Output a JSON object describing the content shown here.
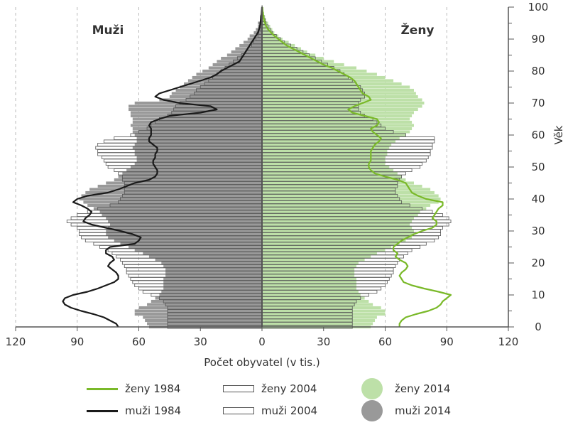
{
  "chart_data": {
    "type": "population-pyramid",
    "left_title": "Muži",
    "right_title": "Ženy",
    "xlabel": "Počet obyvatel (v tis.)",
    "ylabel": "Věk",
    "x_ticks_left": [
      "120",
      "90",
      "60",
      "30",
      "0"
    ],
    "x_ticks_right": [
      "30",
      "60",
      "90",
      "120"
    ],
    "y_ticks": [
      "0",
      "10",
      "20",
      "30",
      "40",
      "50",
      "60",
      "70",
      "80",
      "90",
      "100"
    ],
    "xlim": [
      0,
      120
    ],
    "ylim": [
      0,
      100
    ],
    "ages": [
      0,
      1,
      2,
      3,
      4,
      5,
      6,
      7,
      8,
      9,
      10,
      11,
      12,
      13,
      14,
      15,
      16,
      17,
      18,
      19,
      20,
      21,
      22,
      23,
      24,
      25,
      26,
      27,
      28,
      29,
      30,
      31,
      32,
      33,
      34,
      35,
      36,
      37,
      38,
      39,
      40,
      41,
      42,
      43,
      44,
      45,
      46,
      47,
      48,
      49,
      50,
      51,
      52,
      53,
      54,
      55,
      56,
      57,
      58,
      59,
      60,
      61,
      62,
      63,
      64,
      65,
      66,
      67,
      68,
      69,
      70,
      71,
      72,
      73,
      74,
      75,
      76,
      77,
      78,
      79,
      80,
      81,
      82,
      83,
      84,
      85,
      86,
      87,
      88,
      89,
      90,
      91,
      92,
      93,
      94,
      95,
      96,
      97,
      98,
      99,
      100
    ],
    "series": [
      {
        "name": "muži 2014",
        "side": "left",
        "style": "area",
        "color": "#999999",
        "values": [
          55,
          56,
          57,
          58,
          62,
          62,
          60,
          56,
          54,
          52,
          50,
          49,
          48,
          48,
          48,
          48,
          47,
          47,
          47,
          48,
          49,
          52,
          55,
          58,
          62,
          65,
          69,
          72,
          75,
          76,
          76,
          75,
          74,
          75,
          76,
          78,
          79,
          82,
          85,
          87,
          89,
          88,
          86,
          84,
          80,
          76,
          72,
          70,
          68,
          66,
          64,
          62,
          61,
          61,
          62,
          62,
          63,
          62,
          61,
          61,
          62,
          63,
          63,
          64,
          63,
          63,
          64,
          64,
          65,
          65,
          62,
          50,
          45,
          44,
          42,
          40,
          38,
          36,
          34,
          32,
          29,
          26,
          24,
          22,
          20,
          17,
          15,
          13,
          11,
          9,
          7,
          6,
          4,
          3,
          2,
          2,
          1,
          1,
          0.5,
          0.3,
          0.2
        ]
      },
      {
        "name": "muži 2004",
        "side": "left",
        "style": "outline",
        "color": "#555555",
        "values": [
          46,
          46,
          46,
          46,
          46,
          46,
          46,
          47,
          48,
          50,
          54,
          58,
          60,
          62,
          63,
          64,
          65,
          66,
          66,
          67,
          68,
          69,
          71,
          73,
          75,
          79,
          82,
          86,
          88,
          89,
          89,
          90,
          93,
          95,
          93,
          90,
          85,
          80,
          74,
          70,
          69,
          68,
          67,
          67,
          67,
          67,
          68,
          68,
          70,
          72,
          75,
          76,
          77,
          78,
          80,
          80,
          81,
          80,
          77,
          72,
          64,
          60,
          56,
          54,
          52,
          50,
          46,
          44,
          43,
          42,
          40,
          37,
          35,
          33,
          32,
          30,
          28,
          26,
          24,
          22,
          20,
          18,
          16,
          14,
          12,
          10,
          8,
          7,
          5,
          4,
          3,
          2,
          1.5,
          1,
          0.8,
          0.5,
          0.3,
          0.2,
          0.1,
          0.1,
          0
        ]
      },
      {
        "name": "muži 1984",
        "side": "left",
        "style": "line",
        "color": "#1a1a1a",
        "values": [
          70,
          71,
          74,
          77,
          82,
          88,
          93,
          96,
          97,
          96,
          92,
          85,
          80,
          76,
          72,
          70,
          70,
          71,
          73,
          75,
          74,
          72,
          73,
          76,
          76,
          74,
          62,
          60,
          59,
          63,
          69,
          76,
          83,
          87,
          86,
          84,
          83,
          85,
          88,
          92,
          90,
          85,
          75,
          70,
          66,
          62,
          55,
          52,
          51,
          51,
          52,
          53,
          53,
          52,
          52,
          51,
          51,
          53,
          55,
          55,
          54,
          54,
          54,
          55,
          54,
          50,
          45,
          30,
          22,
          25,
          40,
          48,
          52,
          50,
          45,
          40,
          35,
          30,
          25,
          22,
          20,
          17,
          14,
          11,
          10,
          9,
          8,
          7,
          6,
          5,
          4,
          3,
          2,
          1.5,
          1,
          0.8,
          0.6,
          0.4,
          0.2,
          0.1,
          0
        ]
      },
      {
        "name": "ženy 2014",
        "side": "right",
        "style": "area",
        "color": "#bde0a8",
        "values": [
          53,
          54,
          55,
          56,
          60,
          60,
          58,
          54,
          52,
          50,
          48,
          47,
          46,
          46,
          46,
          46,
          45,
          45,
          45,
          46,
          47,
          50,
          53,
          56,
          60,
          63,
          67,
          70,
          73,
          74,
          74,
          73,
          72,
          73,
          74,
          76,
          77,
          80,
          82,
          86,
          87,
          86,
          84,
          82,
          78,
          74,
          70,
          68,
          66,
          64,
          62,
          60,
          60,
          60,
          61,
          61,
          62,
          63,
          65,
          67,
          70,
          72,
          73,
          74,
          73,
          72,
          73,
          74,
          76,
          78,
          79,
          78,
          76,
          75,
          74,
          72,
          68,
          64,
          60,
          56,
          51,
          46,
          40,
          35,
          30,
          26,
          22,
          19,
          16,
          13,
          10,
          8,
          6,
          5,
          4,
          3,
          2,
          1.5,
          1,
          0.5,
          0.3
        ]
      },
      {
        "name": "ženy 2004",
        "side": "right",
        "style": "outline",
        "color": "#555555",
        "values": [
          44,
          44,
          44,
          44,
          44,
          44,
          44,
          45,
          46,
          48,
          52,
          56,
          58,
          60,
          61,
          62,
          63,
          64,
          64,
          65,
          66,
          67,
          69,
          71,
          73,
          77,
          80,
          84,
          86,
          87,
          87,
          88,
          91,
          92,
          91,
          88,
          83,
          78,
          72,
          68,
          67,
          66,
          65,
          65,
          66,
          66,
          67,
          68,
          70,
          73,
          77,
          78,
          80,
          81,
          82,
          82,
          83,
          83,
          84,
          84,
          70,
          64,
          60,
          58,
          56,
          54,
          50,
          48,
          47,
          47,
          47,
          48,
          50,
          50,
          49,
          48,
          46,
          44,
          42,
          40,
          38,
          35,
          32,
          29,
          26,
          23,
          20,
          17,
          14,
          11,
          9,
          7,
          5,
          4,
          3,
          2,
          1.5,
          1,
          0.5,
          0.3,
          0.1
        ]
      },
      {
        "name": "ženy 1984",
        "side": "right",
        "style": "line",
        "color": "#7ab929",
        "values": [
          67,
          67,
          68,
          70,
          75,
          81,
          85,
          87,
          88,
          90,
          92,
          86,
          79,
          73,
          69,
          68,
          67,
          68,
          70,
          71,
          70,
          67,
          65,
          66,
          64,
          64,
          66,
          68,
          71,
          74,
          78,
          83,
          85,
          85,
          83,
          84,
          85,
          86,
          88,
          88,
          80,
          76,
          73,
          72,
          71,
          70,
          66,
          60,
          55,
          53,
          52,
          52,
          53,
          53,
          53,
          53,
          54,
          55,
          57,
          58,
          56,
          54,
          53,
          56,
          57,
          56,
          50,
          44,
          42,
          45,
          49,
          53,
          52,
          49,
          48,
          47,
          46,
          45,
          43,
          40,
          37,
          34,
          30,
          27,
          24,
          21,
          18,
          15,
          12,
          10,
          8,
          6,
          4.5,
          3,
          2,
          1.5,
          1,
          0.7,
          0.5,
          0.3,
          0.2
        ]
      }
    ]
  },
  "legend": {
    "zeny_1984": "ženy 1984",
    "muzi_1984": "muži 1984",
    "zeny_2004": "ženy 2004",
    "muzi_2004": "muži 2004",
    "zeny_2014": "ženy 2014",
    "muzi_2014": "muži 2014"
  },
  "colors": {
    "male_fill": "#999999",
    "female_fill": "#bde0a8",
    "male_line": "#1a1a1a",
    "female_line": "#7ab929",
    "axis": "#555555",
    "grid": "#bbbbbb"
  }
}
